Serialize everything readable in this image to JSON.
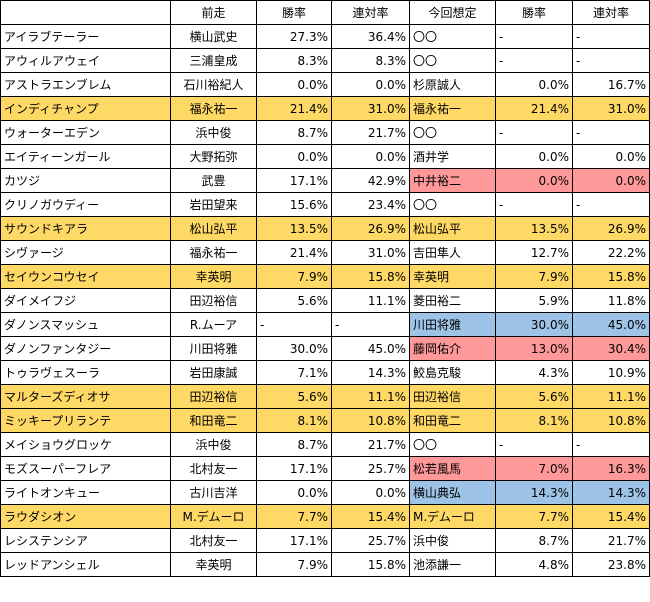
{
  "colors": {
    "row_highlight": "#ffd966",
    "strong_highlight": "#ffc000",
    "pink": "#ff9999",
    "blue": "#9dc3e6"
  },
  "header": [
    "",
    "前走",
    "勝率",
    "連対率",
    "今回想定",
    "勝率",
    "連対率"
  ],
  "rows": [
    {
      "horse": "アイラブテーラー",
      "prev": "横山武史",
      "w1": "27.3%",
      "p1": "36.4%",
      "cur": "〇〇",
      "w2": "-",
      "p2": "-",
      "row": "",
      "cur_bg": "",
      "w2_bg": "",
      "p2_bg": ""
    },
    {
      "horse": "アウィルアウェイ",
      "prev": "三浦皇成",
      "w1": "8.3%",
      "p1": "8.3%",
      "cur": "〇〇",
      "w2": "-",
      "p2": "-",
      "row": "",
      "cur_bg": "",
      "w2_bg": "",
      "p2_bg": ""
    },
    {
      "horse": "アストラエンブレム",
      "prev": "石川裕紀人",
      "w1": "0.0%",
      "p1": "0.0%",
      "cur": "杉原誠人",
      "w2": "0.0%",
      "p2": "16.7%",
      "row": "",
      "cur_bg": "",
      "w2_bg": "",
      "p2_bg": ""
    },
    {
      "horse": "インディチャンプ",
      "prev": "福永祐一",
      "w1": "21.4%",
      "p1": "31.0%",
      "cur": "福永祐一",
      "w2": "21.4%",
      "p2": "31.0%",
      "row": "hl",
      "cur_bg": "or",
      "w2_bg": "or",
      "p2_bg": "or"
    },
    {
      "horse": "ウォーターエデン",
      "prev": "浜中俊",
      "w1": "8.7%",
      "p1": "21.7%",
      "cur": "〇〇",
      "w2": "-",
      "p2": "-",
      "row": "",
      "cur_bg": "",
      "w2_bg": "",
      "p2_bg": ""
    },
    {
      "horse": "エイティーンガール",
      "prev": "大野拓弥",
      "w1": "0.0%",
      "p1": "0.0%",
      "cur": "酒井学",
      "w2": "0.0%",
      "p2": "0.0%",
      "row": "",
      "cur_bg": "",
      "w2_bg": "",
      "p2_bg": ""
    },
    {
      "horse": "カツジ",
      "prev": "武豊",
      "w1": "17.1%",
      "p1": "42.9%",
      "cur": "中井裕二",
      "w2": "0.0%",
      "p2": "0.0%",
      "row": "",
      "cur_bg": "pk",
      "w2_bg": "pk",
      "p2_bg": "pk"
    },
    {
      "horse": "クリノガウディー",
      "prev": "岩田望来",
      "w1": "15.6%",
      "p1": "23.4%",
      "cur": "〇〇",
      "w2": "-",
      "p2": "-",
      "row": "",
      "cur_bg": "",
      "w2_bg": "",
      "p2_bg": ""
    },
    {
      "horse": "サウンドキアラ",
      "prev": "松山弘平",
      "w1": "13.5%",
      "p1": "26.9%",
      "cur": "松山弘平",
      "w2": "13.5%",
      "p2": "26.9%",
      "row": "hl",
      "cur_bg": "or",
      "w2_bg": "or",
      "p2_bg": "or"
    },
    {
      "horse": "シヴァージ",
      "prev": "福永祐一",
      "w1": "21.4%",
      "p1": "31.0%",
      "cur": "吉田隼人",
      "w2": "12.7%",
      "p2": "22.2%",
      "row": "",
      "cur_bg": "",
      "w2_bg": "",
      "p2_bg": ""
    },
    {
      "horse": "セイウンコウセイ",
      "prev": "幸英明",
      "w1": "7.9%",
      "p1": "15.8%",
      "cur": "幸英明",
      "w2": "7.9%",
      "p2": "15.8%",
      "row": "hl",
      "cur_bg": "",
      "w2_bg": "",
      "p2_bg": ""
    },
    {
      "horse": "ダイメイフジ",
      "prev": "田辺裕信",
      "w1": "5.6%",
      "p1": "11.1%",
      "cur": "菱田裕二",
      "w2": "5.9%",
      "p2": "11.8%",
      "row": "",
      "cur_bg": "",
      "w2_bg": "",
      "p2_bg": ""
    },
    {
      "horse": "ダノンスマッシュ",
      "prev": "R.ムーア",
      "w1": "-",
      "p1": "-",
      "cur": "川田将雅",
      "w2": "30.0%",
      "p2": "45.0%",
      "row": "",
      "cur_bg": "bl",
      "w2_bg": "bl",
      "p2_bg": "bl",
      "w1_left": true
    },
    {
      "horse": "ダノンファンタジー",
      "prev": "川田将雅",
      "w1": "30.0%",
      "p1": "45.0%",
      "cur": "藤岡佑介",
      "w2": "13.0%",
      "p2": "30.4%",
      "row": "",
      "cur_bg": "pk",
      "w2_bg": "pk",
      "p2_bg": "pk"
    },
    {
      "horse": "トゥラヴェスーラ",
      "prev": "岩田康誠",
      "w1": "7.1%",
      "p1": "14.3%",
      "cur": "鮫島克駿",
      "w2": "4.3%",
      "p2": "10.9%",
      "row": "",
      "cur_bg": "",
      "w2_bg": "",
      "p2_bg": ""
    },
    {
      "horse": "マルターズディオサ",
      "prev": "田辺裕信",
      "w1": "5.6%",
      "p1": "11.1%",
      "cur": "田辺裕信",
      "w2": "5.6%",
      "p2": "11.1%",
      "row": "hl",
      "cur_bg": "",
      "w2_bg": "",
      "p2_bg": ""
    },
    {
      "horse": "ミッキープリランテ",
      "prev": "和田竜二",
      "w1": "8.1%",
      "p1": "10.8%",
      "cur": "和田竜二",
      "w2": "8.1%",
      "p2": "10.8%",
      "row": "hl",
      "cur_bg": "",
      "w2_bg": "",
      "p2_bg": ""
    },
    {
      "horse": "メイショウグロッケ",
      "prev": "浜中俊",
      "w1": "8.7%",
      "p1": "21.7%",
      "cur": "〇〇",
      "w2": "-",
      "p2": "-",
      "row": "",
      "cur_bg": "",
      "w2_bg": "",
      "p2_bg": ""
    },
    {
      "horse": "モズスーパーフレア",
      "prev": "北村友一",
      "w1": "17.1%",
      "p1": "25.7%",
      "cur": "松若風馬",
      "w2": "7.0%",
      "p2": "16.3%",
      "row": "",
      "cur_bg": "pk",
      "w2_bg": "pk",
      "p2_bg": "pk"
    },
    {
      "horse": "ライトオンキュー",
      "prev": "古川吉洋",
      "w1": "0.0%",
      "p1": "0.0%",
      "cur": "横山典弘",
      "w2": "14.3%",
      "p2": "14.3%",
      "row": "",
      "cur_bg": "bl",
      "w2_bg": "bl",
      "p2_bg": "bl"
    },
    {
      "horse": "ラウダシオン",
      "prev": "M.デムーロ",
      "w1": "7.7%",
      "p1": "15.4%",
      "cur": "M.デムーロ",
      "w2": "7.7%",
      "p2": "15.4%",
      "row": "hl",
      "cur_bg": "",
      "w2_bg": "",
      "p2_bg": ""
    },
    {
      "horse": "レシステンシア",
      "prev": "北村友一",
      "w1": "17.1%",
      "p1": "25.7%",
      "cur": "浜中俊",
      "w2": "8.7%",
      "p2": "21.7%",
      "row": "",
      "cur_bg": "",
      "w2_bg": "",
      "p2_bg": ""
    },
    {
      "horse": "レッドアンシェル",
      "prev": "幸英明",
      "w1": "7.9%",
      "p1": "15.8%",
      "cur": "池添謙一",
      "w2": "4.8%",
      "p2": "23.8%",
      "row": "",
      "cur_bg": "",
      "w2_bg": "",
      "p2_bg": ""
    }
  ]
}
